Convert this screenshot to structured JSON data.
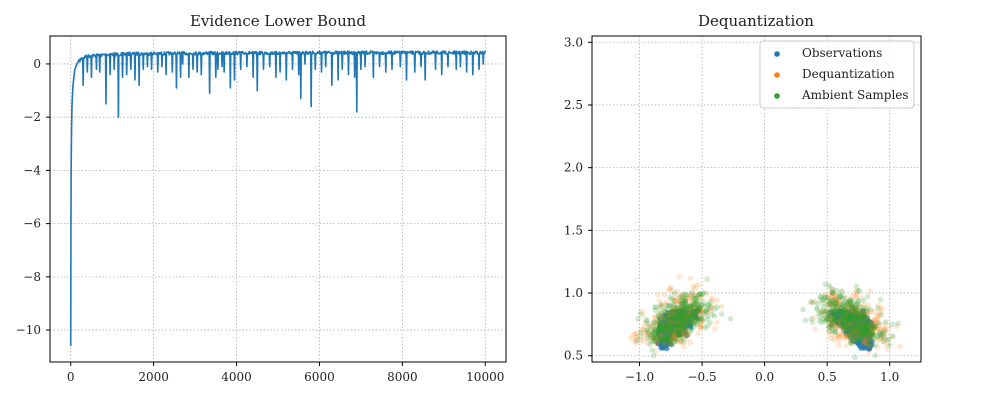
{
  "chart_data": [
    {
      "type": "line",
      "title": "Evidence Lower Bound",
      "xlabel": "",
      "ylabel": "",
      "xlim": [
        -500,
        10500
      ],
      "ylim": [
        -11.2,
        1.05
      ],
      "x_ticks": [
        0,
        2000,
        4000,
        6000,
        8000,
        10000
      ],
      "y_ticks": [
        0,
        -2,
        -4,
        -6,
        -8,
        -10
      ],
      "grid": true,
      "color": "#1f77b4",
      "series": [
        {
          "x": [
            0,
            5,
            10,
            20,
            30,
            50,
            75,
            100,
            150,
            200,
            250,
            300,
            350,
            400,
            600,
            800,
            1000,
            1500,
            2000,
            3000,
            4000,
            5000,
            6000,
            7000,
            8000,
            9000,
            10000
          ],
          "values": [
            -10.6,
            -6.5,
            -4.0,
            -2.5,
            -1.6,
            -0.9,
            -0.5,
            -0.2,
            0.0,
            0.15,
            0.25,
            0.3,
            0.33,
            0.35,
            0.38,
            0.4,
            0.42,
            0.44,
            0.45,
            0.46,
            0.47,
            0.47,
            0.48,
            0.48,
            0.48,
            0.48,
            0.48
          ],
          "dips": [
            [
              300,
              -0.8
            ],
            [
              400,
              -0.3
            ],
            [
              500,
              -0.5
            ],
            [
              620,
              -0.2
            ],
            [
              700,
              -0.3
            ],
            [
              850,
              -1.5
            ],
            [
              950,
              -0.4
            ],
            [
              1050,
              -0.2
            ],
            [
              1150,
              -2.0
            ],
            [
              1250,
              -0.5
            ],
            [
              1350,
              -0.4
            ],
            [
              1450,
              -0.2
            ],
            [
              1550,
              -0.6
            ],
            [
              1650,
              -0.8
            ],
            [
              1750,
              -0.2
            ],
            [
              1850,
              -0.1
            ],
            [
              1950,
              -0.2
            ],
            [
              2100,
              -0.3
            ],
            [
              2200,
              -0.1
            ],
            [
              2300,
              -0.4
            ],
            [
              2450,
              -0.3
            ],
            [
              2550,
              -0.9
            ],
            [
              2650,
              -0.5
            ],
            [
              2700,
              0.0
            ],
            [
              2850,
              -0.5
            ],
            [
              2950,
              -0.2
            ],
            [
              3050,
              -0.3
            ],
            [
              3150,
              -0.4
            ],
            [
              3350,
              -1.1
            ],
            [
              3500,
              -0.5
            ],
            [
              3550,
              -0.2
            ],
            [
              3650,
              -0.1
            ],
            [
              3700,
              -0.3
            ],
            [
              3850,
              -0.9
            ],
            [
              3950,
              -0.6
            ],
            [
              4100,
              -0.2
            ],
            [
              4250,
              -0.1
            ],
            [
              4400,
              -0.5
            ],
            [
              4500,
              -1.0
            ],
            [
              4650,
              -0.2
            ],
            [
              4800,
              -0.1
            ],
            [
              4950,
              -0.5
            ],
            [
              5050,
              -0.3
            ],
            [
              5200,
              -0.6
            ],
            [
              5350,
              -0.2
            ],
            [
              5500,
              -0.4
            ],
            [
              5550,
              -1.3
            ],
            [
              5650,
              0.0
            ],
            [
              5800,
              -1.6
            ],
            [
              5900,
              -0.2
            ],
            [
              6050,
              -0.3
            ],
            [
              6150,
              -0.1
            ],
            [
              6300,
              -0.8
            ],
            [
              6450,
              -0.6
            ],
            [
              6550,
              -0.2
            ],
            [
              6700,
              -0.4
            ],
            [
              6850,
              -0.5
            ],
            [
              6900,
              -1.8
            ],
            [
              7000,
              -0.2
            ],
            [
              7100,
              -0.1
            ],
            [
              7300,
              -0.5
            ],
            [
              7450,
              -0.1
            ],
            [
              7600,
              -0.3
            ],
            [
              7750,
              -0.2
            ],
            [
              7950,
              -0.1
            ],
            [
              8100,
              -0.6
            ],
            [
              8300,
              -0.3
            ],
            [
              8450,
              -0.1
            ],
            [
              8550,
              -0.6
            ],
            [
              8800,
              -0.2
            ],
            [
              8950,
              -0.4
            ],
            [
              9100,
              -0.1
            ],
            [
              9300,
              -0.2
            ],
            [
              9400,
              -0.1
            ],
            [
              9550,
              -0.3
            ],
            [
              9700,
              -0.4
            ],
            [
              9850,
              -0.2
            ],
            [
              9950,
              0.0
            ]
          ]
        }
      ]
    },
    {
      "type": "scatter",
      "title": "Dequantization",
      "xlabel": "",
      "ylabel": "",
      "xlim": [
        -1.38,
        1.25
      ],
      "ylim": [
        0.45,
        3.05
      ],
      "x_ticks": [
        -1.0,
        -0.5,
        0.0,
        0.5,
        1.0
      ],
      "x_tick_labels": [
        "−1.0",
        "−0.5",
        "0.0",
        "0.5",
        "1.0"
      ],
      "y_ticks": [
        0.5,
        1.0,
        1.5,
        2.0,
        2.5,
        3.0
      ],
      "y_tick_labels": [
        "0.5",
        "1.0",
        "1.5",
        "2.0",
        "2.5",
        "3.0"
      ],
      "grid": true,
      "legend_position": "top-right",
      "series": [
        {
          "name": "Observations",
          "color": "#1f77b4",
          "clusters": [
            {
              "x_range": [
                -0.86,
                -0.52
              ],
              "y_range": [
                0.55,
                0.86
              ]
            },
            {
              "x_range": [
                0.52,
                0.86
              ],
              "y_range": [
                0.55,
                0.86
              ]
            }
          ]
        },
        {
          "name": "Dequantization",
          "color": "#ff7f0e",
          "clusters": [
            {
              "x_range": [
                -1.2,
                -0.5
              ],
              "y_range": [
                0.6,
                1.2
              ]
            },
            {
              "x_range": [
                0.5,
                1.15
              ],
              "y_range": [
                0.6,
                1.1
              ]
            }
          ]
        },
        {
          "name": "Ambient Samples",
          "color": "#2ca02c",
          "clusters": [
            {
              "x_range": [
                -1.3,
                -0.3
              ],
              "y_range": [
                0.6,
                1.15
              ]
            },
            {
              "x_range": [
                0.2,
                1.15
              ],
              "y_range": [
                0.6,
                1.1
              ]
            }
          ]
        }
      ]
    }
  ]
}
